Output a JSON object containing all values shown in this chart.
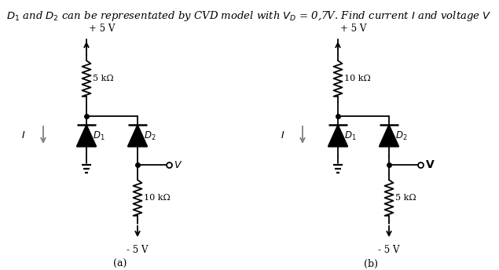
{
  "title_parts": [
    {
      "text": "$D_1$",
      "style": "italic"
    },
    {
      "text": " and ",
      "style": "normal"
    },
    {
      "text": "$D_2$",
      "style": "italic"
    },
    {
      "text": " can be representated by CVD model with ",
      "style": "normal"
    },
    {
      "text": "$V_D$",
      "style": "italic"
    },
    {
      "text": " = 0,7V. Find current ",
      "style": "normal"
    },
    {
      "text": "$I$",
      "style": "italic"
    },
    {
      "text": " and voltage ",
      "style": "normal"
    },
    {
      "text": "$V$",
      "style": "italic"
    }
  ],
  "title_fontsize": 9.5,
  "bg_color": "#ffffff",
  "text_color": "#000000",
  "circuit_a_label": "(a)",
  "circuit_b_label": "(b)",
  "circuit_a": {
    "top_resistor": "5 kΩ",
    "bot_resistor": "10 kΩ",
    "top_voltage": "+ 5 V",
    "bot_voltage": "- 5 V"
  },
  "circuit_b": {
    "top_resistor": "10 kΩ",
    "bot_resistor": "5 kΩ",
    "top_voltage": "+ 5 V",
    "bot_voltage": "- 5 V"
  }
}
